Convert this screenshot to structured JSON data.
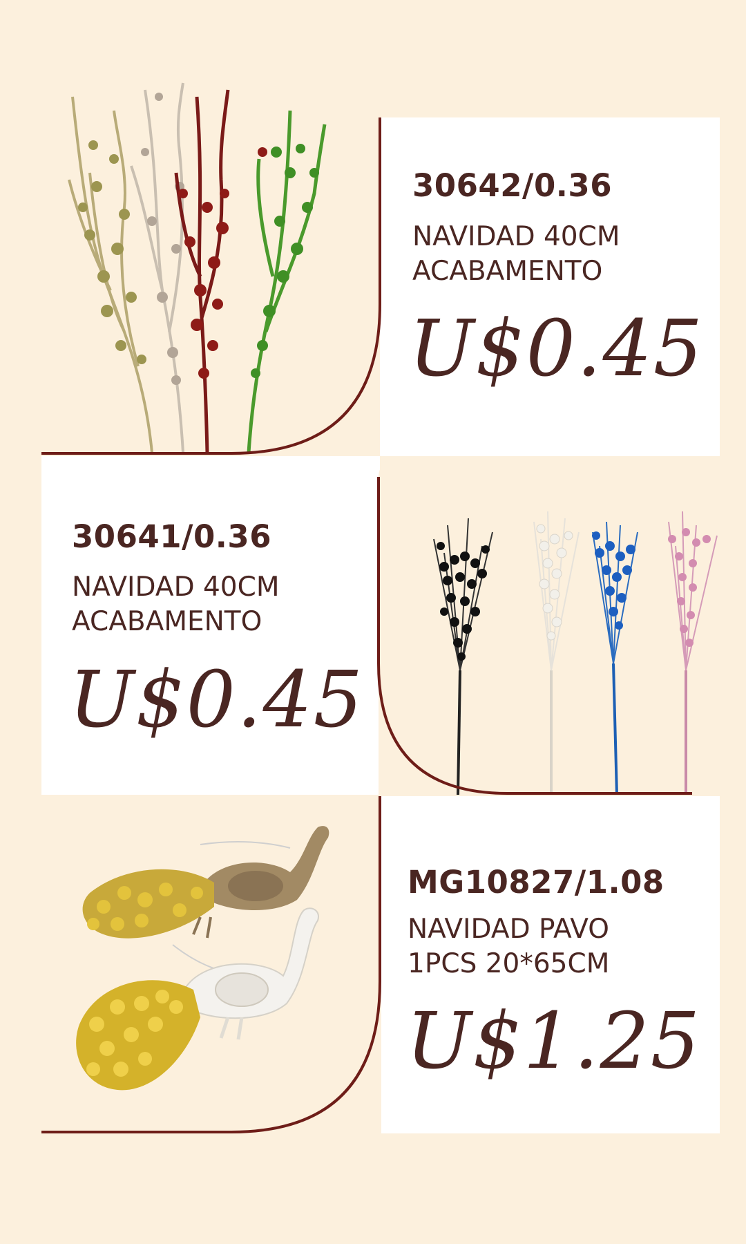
{
  "colors": {
    "background": "#fcf0dd",
    "panel": "#ffffff",
    "accent_line": "#6e1d18",
    "text": "#4a2622"
  },
  "products": [
    {
      "code": "30642/0.36",
      "line1": "NAVIDAD 40CM",
      "line2": "ACABAMENTO",
      "price": "U$0.45",
      "image": "glitter-berry-branches"
    },
    {
      "code": "30641/0.36",
      "line1": "NAVIDAD 40CM",
      "line2": "ACABAMENTO",
      "price": "U$0.45",
      "image": "glitter-berry-picks"
    },
    {
      "code": "MG10827/1.08",
      "line1": "NAVIDAD PAVO",
      "line2": "1PCS 20*65CM",
      "price": "U$1.25",
      "image": "peacock-ornaments"
    }
  ]
}
